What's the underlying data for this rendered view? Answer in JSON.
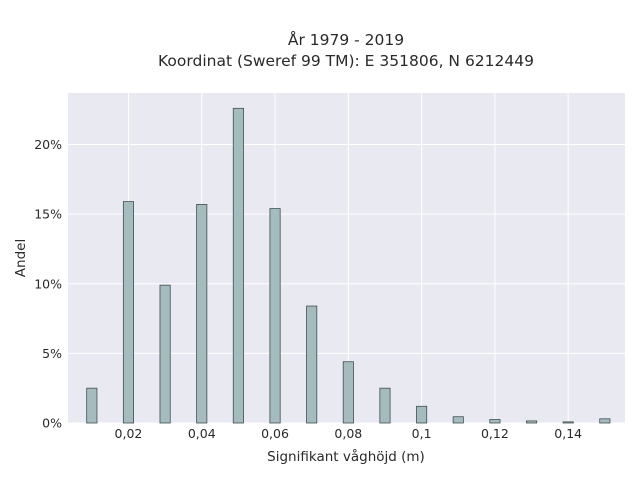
{
  "chart_data": {
    "type": "bar",
    "title_line1": "År 1979 - 2019",
    "title_line2": "Koordinat (Sweref 99 TM): E 351806, N 6212449",
    "xlabel": "Signifikant våghöjd (m)",
    "ylabel": "Andel",
    "x_ticks": [
      "0,02",
      "0,04",
      "0,06",
      "0,08",
      "0,1",
      "0,12",
      "0,14"
    ],
    "x_tick_values": [
      0.02,
      0.04,
      0.06,
      0.08,
      0.1,
      0.12,
      0.14
    ],
    "y_ticks": [
      "0%",
      "5%",
      "10%",
      "15%",
      "20%"
    ],
    "y_tick_values": [
      0,
      5,
      10,
      15,
      20
    ],
    "xlim": [
      0.0035,
      0.1555
    ],
    "ylim": [
      0,
      23.7
    ],
    "grid": true,
    "bar_color": "#a5bcbf",
    "bar_edge_color": "#3f4f4f",
    "plot_background": "#e9e9f1",
    "x": [
      0.01,
      0.02,
      0.03,
      0.04,
      0.05,
      0.06,
      0.07,
      0.08,
      0.09,
      0.1,
      0.11,
      0.12,
      0.13,
      0.14,
      0.15
    ],
    "values": [
      2.5,
      15.9,
      9.9,
      15.7,
      22.6,
      15.4,
      8.4,
      4.4,
      2.5,
      1.2,
      0.45,
      0.25,
      0.15,
      0.08,
      0.3
    ]
  }
}
